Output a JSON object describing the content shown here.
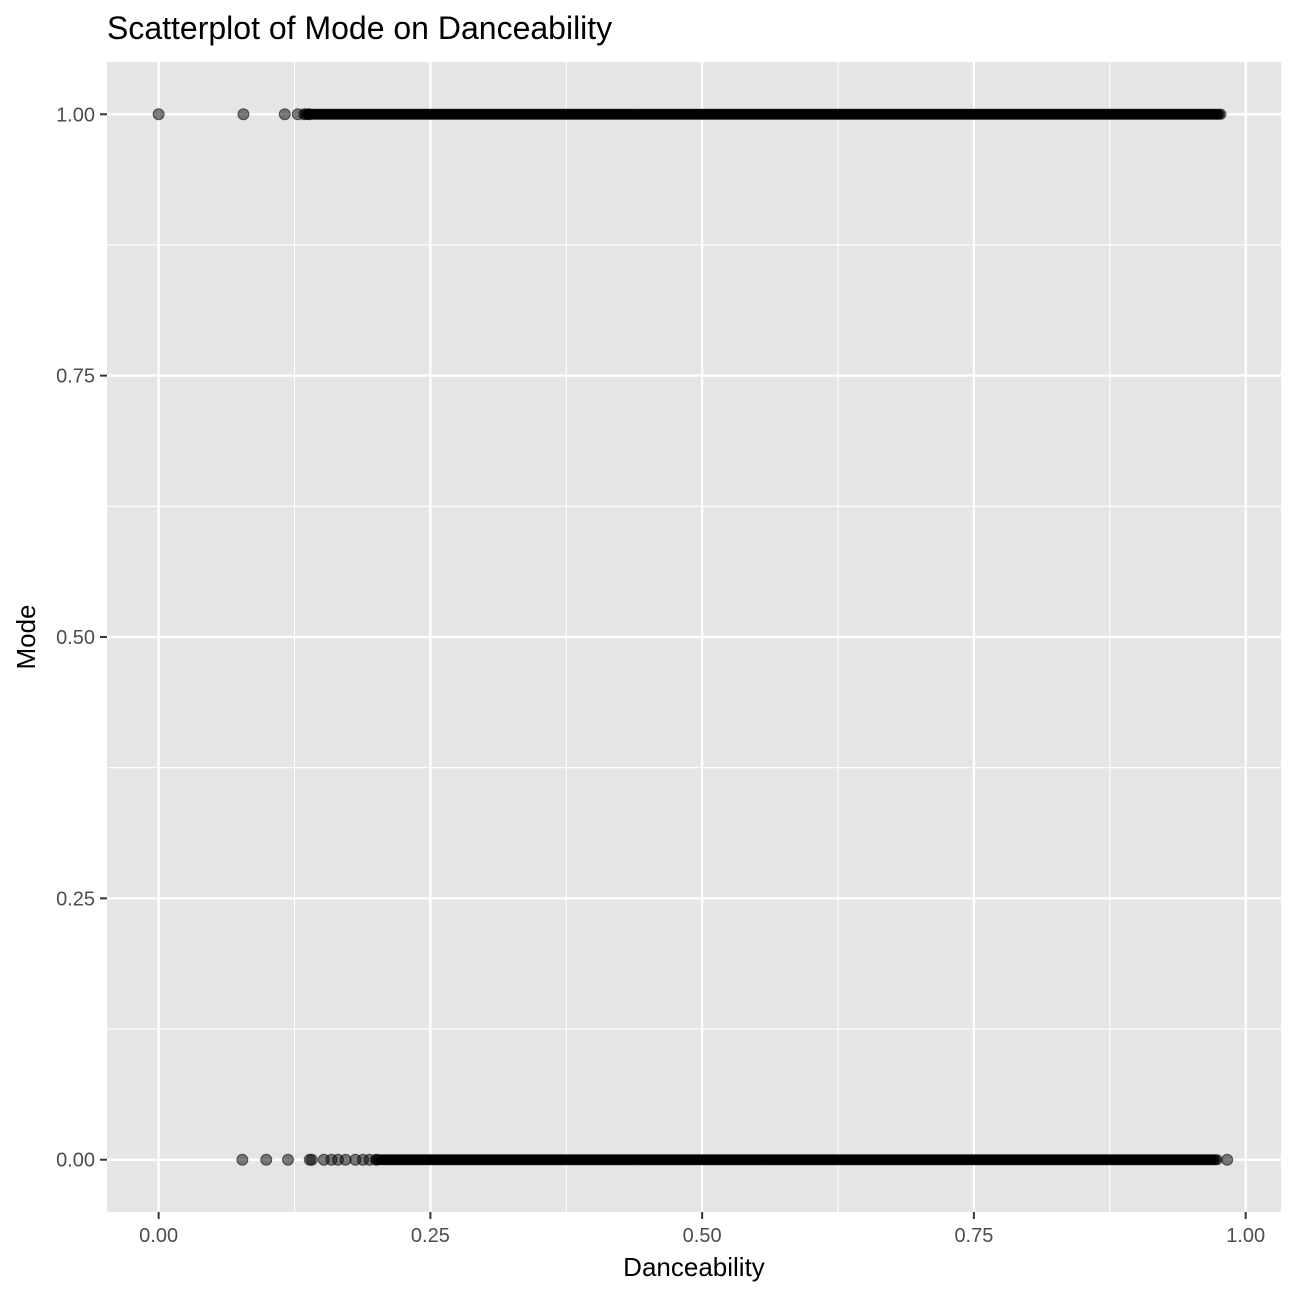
{
  "chart_data": {
    "type": "scatter",
    "title": "Scatterplot of Mode on Danceability",
    "xlabel": "Danceability",
    "ylabel": "Mode",
    "xlim": [
      -0.0475,
      1.0325
    ],
    "ylim": [
      -0.05,
      1.05
    ],
    "x_ticks": [
      0,
      0.25,
      0.5,
      0.75,
      1.0
    ],
    "x_tick_labels": [
      "0.00",
      "0.25",
      "0.50",
      "0.75",
      "1.00"
    ],
    "y_ticks": [
      0,
      0.25,
      0.5,
      0.75,
      1.0
    ],
    "y_tick_labels": [
      "0.00",
      "0.25",
      "0.50",
      "0.75",
      "1.00"
    ],
    "grid": true,
    "point_color": "#000000",
    "point_opacity": 0.5,
    "panel_background": "#e5e5e5",
    "series": [
      {
        "y": 1,
        "isolated_x": [
          0.0,
          0.078,
          0.116,
          0.128,
          0.134,
          0.138
        ],
        "dense_range": [
          0.135,
          0.978
        ]
      },
      {
        "y": 0,
        "isolated_x": [
          0.077,
          0.099,
          0.119,
          0.139,
          0.141,
          0.152,
          0.159,
          0.165,
          0.172,
          0.181,
          0.188,
          0.194,
          0.2,
          0.983
        ],
        "dense_range": [
          0.2,
          0.975
        ]
      }
    ]
  }
}
